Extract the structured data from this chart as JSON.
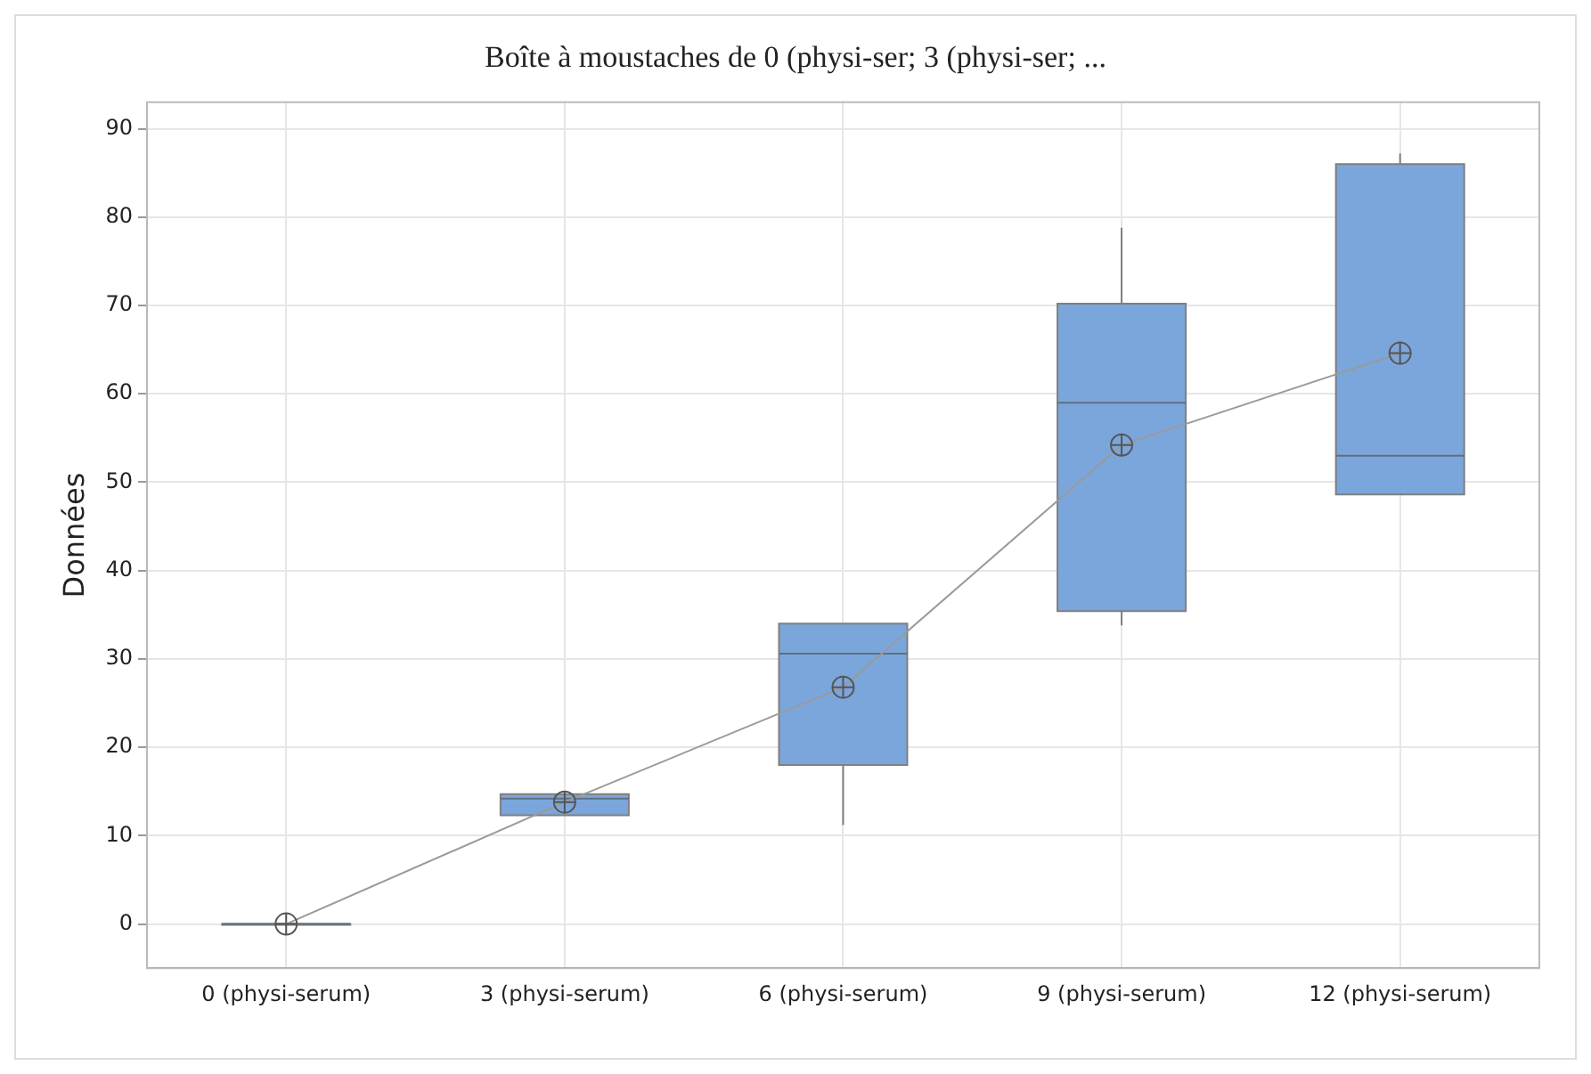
{
  "chart_data": {
    "type": "box",
    "title": "Boîte à moustaches de 0 (physi-ser; 3 (physi-ser; ...",
    "ylabel": "Données",
    "categories": [
      "0 (physi-serum)",
      "3 (physi-serum)",
      "6 (physi-serum)",
      "9 (physi-serum)",
      "12 (physi-serum)"
    ],
    "color": "#7ba6db",
    "boxes": [
      {
        "low": 0,
        "q1": 0,
        "median": 0,
        "q3": 0,
        "high": 0,
        "mean": 0
      },
      {
        "low": 12.3,
        "q1": 12.3,
        "median": 14.2,
        "q3": 14.7,
        "high": 14.7,
        "mean": 13.8
      },
      {
        "low": 11.2,
        "q1": 18,
        "median": 30.6,
        "q3": 34,
        "high": 34,
        "mean": 26.8
      },
      {
        "low": 33.8,
        "q1": 35.4,
        "median": 59,
        "q3": 70.2,
        "high": 78.8,
        "mean": 54.2
      },
      {
        "low": 48.6,
        "q1": 48.6,
        "median": 53,
        "q3": 86,
        "high": 87.2,
        "mean": 64.6
      }
    ],
    "series": [
      {
        "type": "line",
        "color": "#9a9a9a",
        "values": [
          0,
          13.8,
          26.8,
          54.2,
          64.6
        ]
      }
    ],
    "ylim": [
      -5,
      93
    ],
    "yticks": [
      0,
      10,
      20,
      30,
      40,
      50,
      60,
      70,
      80,
      90
    ],
    "grid": true
  }
}
